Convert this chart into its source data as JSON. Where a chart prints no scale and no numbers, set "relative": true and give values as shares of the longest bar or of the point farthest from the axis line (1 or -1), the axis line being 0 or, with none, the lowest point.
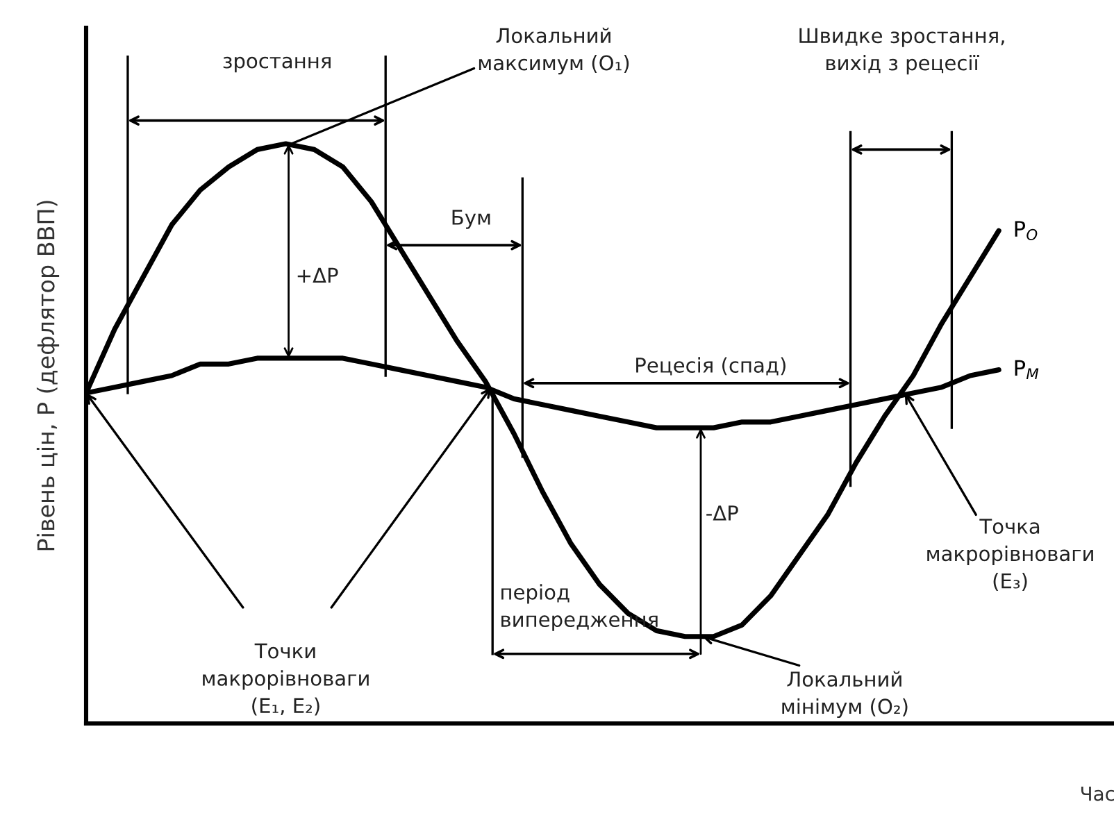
{
  "chart_data": {
    "type": "line",
    "relative": true,
    "xlabel": "Час",
    "ylabel": "Рівень цін, Р (дефлятор ВВП)",
    "categories": [
      null,
      null,
      null,
      null,
      null,
      null,
      null,
      null,
      null,
      null,
      null,
      null,
      null,
      null,
      null,
      null,
      null,
      null,
      null,
      null,
      null,
      null,
      null,
      null,
      null,
      null,
      null,
      null,
      null,
      null,
      null,
      null,
      null
    ],
    "series": [
      {
        "name": "P$_{O}$",
        "color": "#000000",
        "values": [
          0.57,
          0.68,
          0.77,
          0.86,
          0.92,
          0.96,
          0.99,
          1.0,
          0.99,
          0.96,
          0.9,
          0.82,
          0.74,
          0.66,
          0.59,
          0.5,
          0.4,
          0.31,
          0.24,
          0.19,
          0.16,
          0.15,
          0.15,
          0.17,
          0.22,
          0.29,
          0.36,
          0.45,
          0.53,
          0.6,
          0.69,
          0.77,
          0.85
        ]
      },
      {
        "name": "P$_{M}$",
        "color": "#000000",
        "values": [
          0.57,
          0.58,
          0.59,
          0.6,
          0.62,
          0.62,
          0.63,
          0.63,
          0.63,
          0.63,
          0.62,
          0.61,
          0.6,
          0.59,
          0.58,
          0.56,
          0.55,
          0.54,
          0.53,
          0.52,
          0.51,
          0.51,
          0.51,
          0.52,
          0.52,
          0.53,
          0.54,
          0.55,
          0.56,
          0.57,
          0.58,
          0.6,
          0.61
        ]
      }
    ],
    "annotations": [
      "зростання",
      "Локальний\nмаксимум (O₁)",
      "Бум",
      "+ΔP",
      "Швидке зростання,\nвихід з рецесії",
      "Рецесія (спад)",
      "-ΔP",
      "Точки\nмакрорівноваги\n(E₁, E₂)",
      "період\nвипередження",
      "Локальний\nмінімум (O₂)",
      "Точка\nмакрорівноваги\n(E₃)"
    ],
    "line_style": "solid",
    "marker": "none"
  }
}
